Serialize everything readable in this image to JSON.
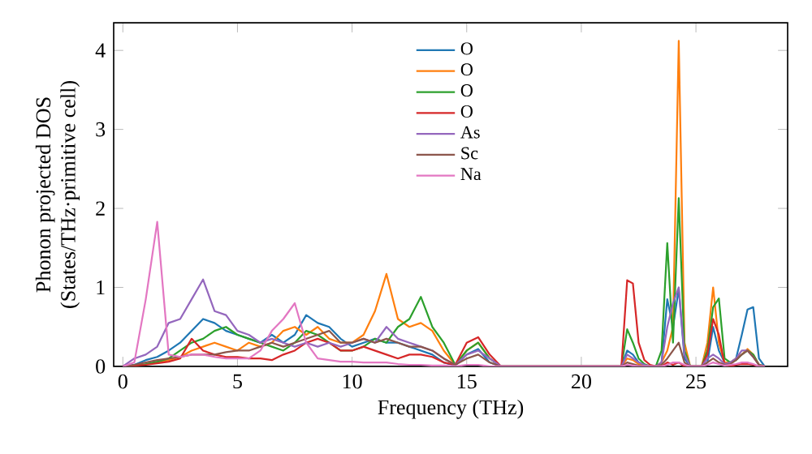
{
  "chart_data": {
    "type": "line",
    "xlabel": "Frequency (THz)",
    "ylabel": "Phonon projected DOS\n(States/THz·primitive cell)",
    "x": [
      0,
      0.5,
      1,
      1.5,
      2,
      2.5,
      3,
      3.5,
      4,
      4.5,
      5,
      5.5,
      6,
      6.5,
      7,
      7.5,
      8,
      8.5,
      9,
      9.5,
      10,
      10.5,
      11,
      11.5,
      12,
      12.5,
      13,
      13.5,
      14,
      14.5,
      15,
      15.5,
      16,
      16.5,
      17,
      17.5,
      18,
      18.5,
      19,
      19.5,
      20,
      20.5,
      21,
      21.5,
      21.75,
      22,
      22.25,
      22.5,
      22.75,
      23,
      23.25,
      23.5,
      23.75,
      24,
      24.25,
      24.5,
      24.75,
      25,
      25.25,
      25.5,
      25.75,
      26,
      26.25,
      26.5,
      26.75,
      27,
      27.25,
      27.5,
      27.75,
      28
    ],
    "xlim": [
      -0.4,
      29
    ],
    "ylim": [
      0,
      4.35
    ],
    "xticks": [
      0,
      5,
      10,
      15,
      20,
      25
    ],
    "yticks": [
      0,
      1,
      2,
      3,
      4
    ],
    "legend": "top",
    "grid": false,
    "line_style": "solid",
    "marker": "none",
    "series": [
      {
        "name": "O",
        "color": "#1f77b4",
        "values": [
          0,
          0.02,
          0.08,
          0.12,
          0.2,
          0.3,
          0.45,
          0.6,
          0.55,
          0.45,
          0.4,
          0.35,
          0.3,
          0.4,
          0.3,
          0.4,
          0.65,
          0.55,
          0.5,
          0.35,
          0.25,
          0.3,
          0.35,
          0.3,
          0.3,
          0.25,
          0.2,
          0.15,
          0.05,
          0.01,
          0.15,
          0.22,
          0.05,
          0,
          0,
          0,
          0,
          0,
          0,
          0,
          0,
          0,
          0,
          0,
          0,
          0.2,
          0.15,
          0.05,
          0.02,
          0,
          0,
          0.05,
          0.85,
          0.5,
          0.98,
          0.1,
          0,
          0,
          0,
          0.05,
          0.5,
          0.2,
          0.05,
          0.05,
          0.1,
          0.4,
          0.72,
          0.75,
          0.1,
          0
        ]
      },
      {
        "name": "O",
        "color": "#ff7f0e",
        "values": [
          null,
          null,
          0.03,
          0.05,
          0.08,
          0.12,
          0.2,
          0.25,
          0.3,
          0.25,
          0.2,
          0.3,
          0.25,
          0.3,
          0.45,
          0.5,
          0.4,
          0.5,
          0.35,
          0.3,
          0.3,
          0.4,
          0.7,
          1.17,
          0.6,
          0.5,
          0.55,
          0.45,
          0.2,
          0.02,
          0.2,
          0.3,
          0.1,
          0,
          0,
          0,
          0,
          0,
          0,
          0,
          0,
          0,
          0,
          0,
          0,
          0.1,
          0.08,
          0.03,
          0.01,
          0,
          0,
          0.05,
          0.2,
          0.5,
          4.12,
          0.3,
          0,
          0,
          0,
          0.3,
          1.0,
          0.3,
          0.05,
          0.05,
          0.1,
          0.15,
          0.22,
          0.15,
          0.02,
          0
        ]
      },
      {
        "name": "O",
        "color": "#2ca02c",
        "values": [
          0,
          0.01,
          0.03,
          0.06,
          0.1,
          0.2,
          0.3,
          0.35,
          0.45,
          0.5,
          0.4,
          0.35,
          0.3,
          0.25,
          0.2,
          0.3,
          0.45,
          0.4,
          0.3,
          0.2,
          0.2,
          0.25,
          0.35,
          0.3,
          0.5,
          0.6,
          0.88,
          0.5,
          0.3,
          0.02,
          0.2,
          0.3,
          0.1,
          0,
          0,
          0,
          0,
          0,
          0,
          0,
          0,
          0,
          0,
          0,
          0,
          0.47,
          0.3,
          0.1,
          0.03,
          0,
          0,
          0.2,
          1.56,
          0.3,
          2.13,
          0.2,
          0,
          0,
          0,
          0.2,
          0.75,
          0.86,
          0.1,
          0.05,
          0.08,
          0.15,
          0.2,
          0.15,
          0.02,
          0
        ]
      },
      {
        "name": "O",
        "color": "#d62728",
        "values": [
          0,
          0.01,
          0.02,
          0.04,
          0.06,
          0.1,
          0.35,
          0.2,
          0.15,
          0.12,
          0.12,
          0.1,
          0.1,
          0.08,
          0.15,
          0.2,
          0.3,
          0.35,
          0.3,
          0.2,
          0.2,
          0.25,
          0.2,
          0.15,
          0.1,
          0.15,
          0.15,
          0.12,
          0.05,
          0.02,
          0.3,
          0.37,
          0.15,
          0,
          0,
          0,
          0,
          0,
          0,
          0,
          0,
          0,
          0,
          0,
          0,
          1.09,
          1.05,
          0.3,
          0.08,
          0.02,
          0,
          0,
          0.05,
          0.02,
          0.05,
          0,
          0,
          0,
          0,
          0.15,
          0.6,
          0.4,
          0.02,
          0,
          0.02,
          0.03,
          0.03,
          0.02,
          0,
          0
        ]
      },
      {
        "name": "As",
        "color": "#9467bd",
        "values": [
          0,
          0.1,
          0.15,
          0.25,
          0.55,
          0.6,
          0.85,
          1.1,
          0.7,
          0.65,
          0.45,
          0.4,
          0.3,
          0.35,
          0.3,
          0.25,
          0.3,
          0.25,
          0.3,
          0.25,
          0.3,
          0.35,
          0.3,
          0.5,
          0.35,
          0.3,
          0.25,
          0.2,
          0.1,
          0.02,
          0.15,
          0.2,
          0.1,
          0,
          0,
          0,
          0,
          0,
          0,
          0,
          0,
          0,
          0,
          0,
          0,
          0.15,
          0.1,
          0.05,
          0.02,
          0,
          0,
          0.05,
          0.5,
          0.8,
          1.0,
          0.15,
          0,
          0,
          0,
          0.1,
          0.15,
          0.1,
          0.03,
          0.05,
          0.1,
          0.2,
          0.2,
          0.12,
          0.02,
          0
        ]
      },
      {
        "name": "Sc",
        "color": "#8c564b",
        "values": [
          0,
          0.02,
          0.05,
          0.08,
          0.1,
          0.12,
          0.15,
          0.15,
          0.15,
          0.18,
          0.2,
          0.2,
          0.25,
          0.3,
          0.25,
          0.3,
          0.35,
          0.4,
          0.45,
          0.3,
          0.3,
          0.35,
          0.3,
          0.35,
          0.3,
          0.25,
          0.25,
          0.2,
          0.1,
          0.02,
          0.1,
          0.15,
          0.05,
          0,
          0,
          0,
          0,
          0,
          0,
          0,
          0,
          0,
          0,
          0,
          0,
          0.05,
          0.03,
          0.01,
          0,
          0,
          0,
          0.02,
          0.1,
          0.2,
          0.3,
          0.05,
          0,
          0,
          0,
          0.05,
          0.1,
          0.05,
          0.02,
          0.03,
          0.08,
          0.15,
          0.2,
          0.12,
          0.02,
          0
        ]
      },
      {
        "name": "Na",
        "color": "#e377c2",
        "values": [
          0,
          0.05,
          0.85,
          1.83,
          0.15,
          0.12,
          0.15,
          0.15,
          0.12,
          0.1,
          0.1,
          0.1,
          0.2,
          0.45,
          0.6,
          0.8,
          0.3,
          0.1,
          0.08,
          0.06,
          0.06,
          0.05,
          0.05,
          0.05,
          0.03,
          0.02,
          0.02,
          0.01,
          0.01,
          0,
          0.02,
          0.02,
          0,
          0,
          0,
          0,
          0,
          0,
          0,
          0,
          0,
          0,
          0,
          0,
          0,
          0.02,
          0.01,
          0,
          0,
          0,
          0,
          0,
          0.02,
          0.05,
          0.05,
          0.02,
          0,
          0,
          0,
          0.02,
          0.05,
          0.03,
          0.01,
          0.02,
          0.03,
          0.05,
          0.05,
          0.03,
          0,
          0
        ]
      }
    ]
  }
}
